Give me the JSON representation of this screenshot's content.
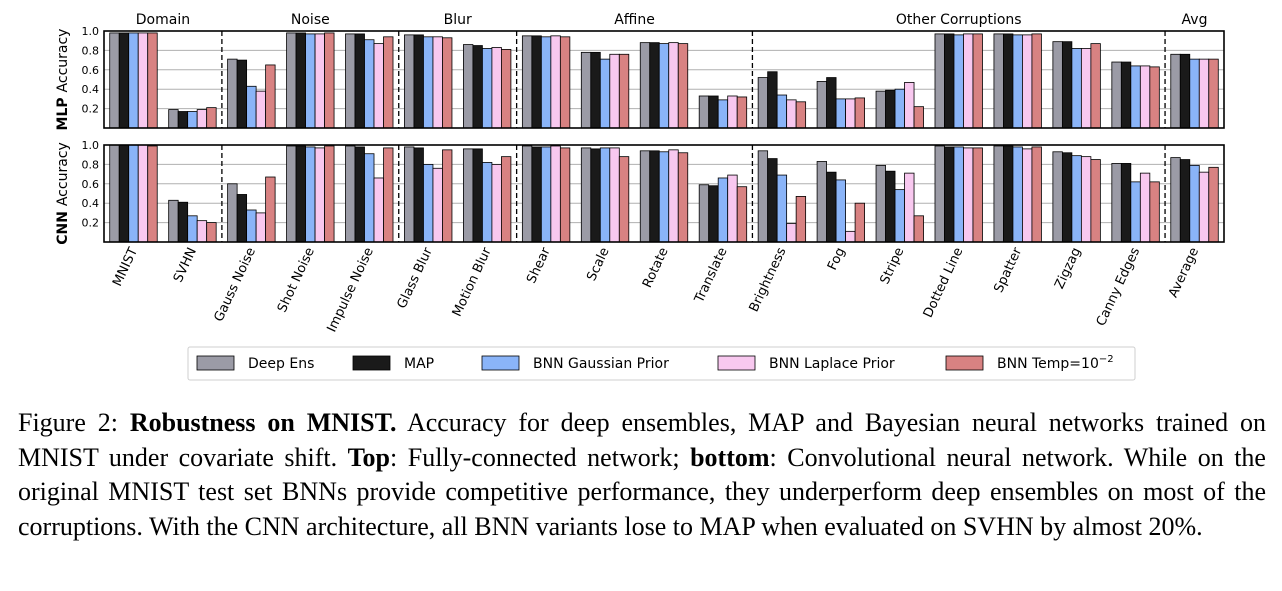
{
  "chart_data": {
    "type": "bar",
    "group_titles": [
      "Domain",
      "Noise",
      "Blur",
      "Affine",
      "Other Corruptions",
      "Avg"
    ],
    "groups": [
      {
        "title": "Domain",
        "categories": [
          0,
          1
        ]
      },
      {
        "title": "Noise",
        "categories": [
          2,
          3,
          4
        ]
      },
      {
        "title": "Blur",
        "categories": [
          5,
          6
        ]
      },
      {
        "title": "Affine",
        "categories": [
          7,
          8,
          9,
          10
        ]
      },
      {
        "title": "Other Corruptions",
        "categories": [
          11,
          12,
          13,
          14,
          15,
          16,
          17
        ]
      },
      {
        "title": "Avg",
        "categories": [
          18
        ]
      }
    ],
    "categories": [
      "MNIST",
      "SVHN",
      "Gauss Noise",
      "Shot Noise",
      "Impulse Noise",
      "Glass Blur",
      "Motion Blur",
      "Shear",
      "Scale",
      "Rotate",
      "Translate",
      "Brightness",
      "Fog",
      "Stripe",
      "Dotted Line",
      "Spatter",
      "Zigzag",
      "Canny Edges",
      "Average"
    ],
    "ylim": [
      0,
      1.0
    ],
    "yticks": [
      "0.2",
      "0.4",
      "0.6",
      "0.8",
      "1.0"
    ],
    "grid": true,
    "legend_position": "bottom-center",
    "series_names": [
      "Deep Ens",
      "MAP",
      "BNN Gaussian Prior",
      "BNN Laplace Prior",
      "BNN Temp=10"
    ],
    "legend_exponent": "−2",
    "series_colors": [
      "#9b9ba6",
      "#1a1a1a",
      "#8ab4f8",
      "#f8c8ef",
      "#d88282"
    ],
    "panels": [
      {
        "ylabel_bold": "MLP",
        "ylabel": "Accuracy",
        "series": [
          {
            "name": "Deep Ens",
            "values": [
              0.98,
              0.19,
              0.71,
              0.98,
              0.97,
              0.96,
              0.86,
              0.95,
              0.78,
              0.88,
              0.33,
              0.52,
              0.48,
              0.38,
              0.97,
              0.97,
              0.89,
              0.68,
              0.76
            ]
          },
          {
            "name": "MAP",
            "values": [
              0.98,
              0.17,
              0.7,
              0.98,
              0.97,
              0.96,
              0.85,
              0.95,
              0.78,
              0.88,
              0.33,
              0.58,
              0.52,
              0.39,
              0.97,
              0.97,
              0.89,
              0.68,
              0.76
            ]
          },
          {
            "name": "BNN Gaussian Prior",
            "values": [
              0.98,
              0.17,
              0.43,
              0.97,
              0.91,
              0.94,
              0.82,
              0.94,
              0.71,
              0.87,
              0.29,
              0.34,
              0.3,
              0.4,
              0.96,
              0.96,
              0.82,
              0.64,
              0.71
            ]
          },
          {
            "name": "BNN Laplace Prior",
            "values": [
              0.98,
              0.19,
              0.38,
              0.97,
              0.87,
              0.94,
              0.83,
              0.95,
              0.76,
              0.88,
              0.33,
              0.29,
              0.3,
              0.47,
              0.97,
              0.96,
              0.82,
              0.64,
              0.71
            ]
          },
          {
            "name": "BNN Temp=10",
            "values": [
              0.98,
              0.21,
              0.65,
              0.98,
              0.94,
              0.93,
              0.81,
              0.94,
              0.76,
              0.87,
              0.32,
              0.27,
              0.31,
              0.22,
              0.97,
              0.97,
              0.87,
              0.63,
              0.71
            ]
          }
        ]
      },
      {
        "ylabel_bold": "CNN",
        "ylabel": "Accuracy",
        "series": [
          {
            "name": "Deep Ens",
            "values": [
              1.0,
              0.43,
              0.6,
              0.99,
              0.99,
              0.98,
              0.96,
              0.99,
              0.97,
              0.94,
              0.59,
              0.94,
              0.83,
              0.79,
              0.99,
              0.99,
              0.93,
              0.81,
              0.87
            ]
          },
          {
            "name": "MAP",
            "values": [
              1.0,
              0.41,
              0.49,
              0.99,
              0.98,
              0.97,
              0.96,
              0.98,
              0.96,
              0.94,
              0.58,
              0.86,
              0.72,
              0.73,
              0.98,
              0.99,
              0.92,
              0.81,
              0.85
            ]
          },
          {
            "name": "BNN Gaussian Prior",
            "values": [
              1.0,
              0.27,
              0.33,
              0.98,
              0.91,
              0.8,
              0.82,
              0.98,
              0.97,
              0.93,
              0.66,
              0.69,
              0.64,
              0.54,
              0.98,
              0.98,
              0.89,
              0.62,
              0.79
            ]
          },
          {
            "name": "BNN Laplace Prior",
            "values": [
              1.0,
              0.22,
              0.3,
              0.97,
              0.66,
              0.76,
              0.8,
              0.99,
              0.97,
              0.95,
              0.69,
              0.19,
              0.11,
              0.71,
              0.97,
              0.96,
              0.88,
              0.71,
              0.72
            ]
          },
          {
            "name": "BNN Temp=10",
            "values": [
              0.99,
              0.2,
              0.67,
              0.99,
              0.97,
              0.95,
              0.88,
              0.97,
              0.88,
              0.92,
              0.57,
              0.47,
              0.4,
              0.27,
              0.97,
              0.98,
              0.85,
              0.62,
              0.77
            ]
          }
        ]
      }
    ]
  },
  "caption": {
    "label": "Figure 2: ",
    "title": "Robustness on MNIST.",
    "text1": " Accuracy for deep ensembles, MAP and Bayesian neural networks trained on MNIST under covariate shift. ",
    "top_label": "Top",
    "text2": ": Fully-connected network; ",
    "bottom_label": "bottom",
    "text3": ": Convolutional neural network. While on the original MNIST test set BNNs provide competitive performance, they underperform deep ensembles on most of the corruptions. With the CNN architecture, all BNN variants lose to MAP when evaluated on SVHN by almost 20%."
  }
}
